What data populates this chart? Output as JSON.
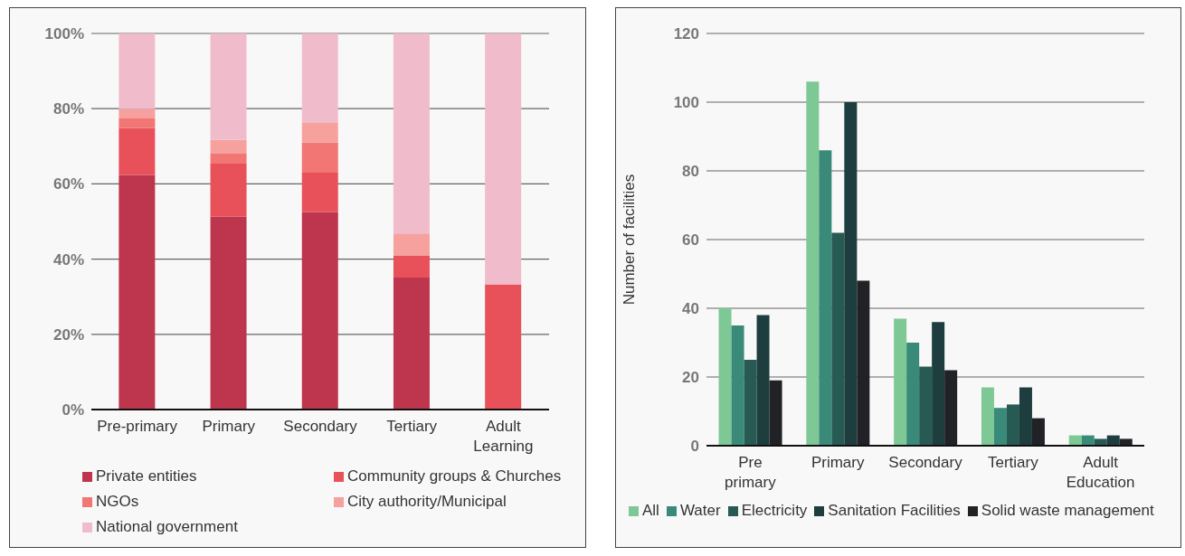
{
  "chart_data": [
    {
      "type": "bar",
      "stacked": true,
      "categories": [
        "Pre-primary",
        "Primary",
        "Secondary",
        "Tertiary",
        "Adult Learning"
      ],
      "ylim": [
        0,
        100
      ],
      "yticks": [
        {
          "value": 0,
          "label": "0%"
        },
        {
          "value": 20,
          "label": "20%"
        },
        {
          "value": 40,
          "label": "40%"
        },
        {
          "value": 60,
          "label": "60%"
        },
        {
          "value": 80,
          "label": "80%"
        },
        {
          "value": 100,
          "label": "100%"
        }
      ],
      "grid": "y",
      "legend": "bottom",
      "series": [
        {
          "name": "Private entities",
          "color": "#be364e",
          "values": [
            62.4,
            51.3,
            52.5,
            35.1,
            0
          ]
        },
        {
          "name": "Community groups & Churches",
          "color": "#e9515a",
          "values": [
            12.5,
            14.1,
            10.5,
            5.9,
            33.3
          ]
        },
        {
          "name": "NGOs",
          "color": "#f27674",
          "values": [
            2.5,
            2.6,
            8,
            0,
            0
          ]
        },
        {
          "name": "City authority/Municipal",
          "color": "#f6a19e",
          "values": [
            2.5,
            3.7,
            5.2,
            5.8,
            0
          ]
        },
        {
          "name": "National government",
          "color": "#f0bccb",
          "values": [
            20.1,
            28.3,
            23.8,
            53.2,
            66.7
          ]
        }
      ]
    },
    {
      "type": "bar",
      "categories": [
        "Pre primary",
        "Primary",
        "Secondary",
        "Tertiary",
        "Adult Education"
      ],
      "ylabel": "Number of facilities",
      "ylim": [
        0,
        120
      ],
      "yticks": [
        0,
        20,
        40,
        60,
        80,
        100,
        120
      ],
      "grid": "y",
      "legend": "bottom",
      "series": [
        {
          "name": "All",
          "color": "#7ec896",
          "values": [
            40,
            106,
            37,
            17,
            3
          ]
        },
        {
          "name": "Water",
          "color": "#3a8a7a",
          "values": [
            35,
            86,
            30,
            11,
            3
          ]
        },
        {
          "name": "Electricity",
          "color": "#265a52",
          "values": [
            25,
            62,
            23,
            12,
            2
          ]
        },
        {
          "name": "Sanitation Facilities",
          "color": "#1e3d3e",
          "values": [
            38,
            100,
            36,
            17,
            3
          ]
        },
        {
          "name": "Solid waste management",
          "color": "#212226",
          "values": [
            19,
            48,
            22,
            8,
            2
          ]
        }
      ]
    }
  ]
}
